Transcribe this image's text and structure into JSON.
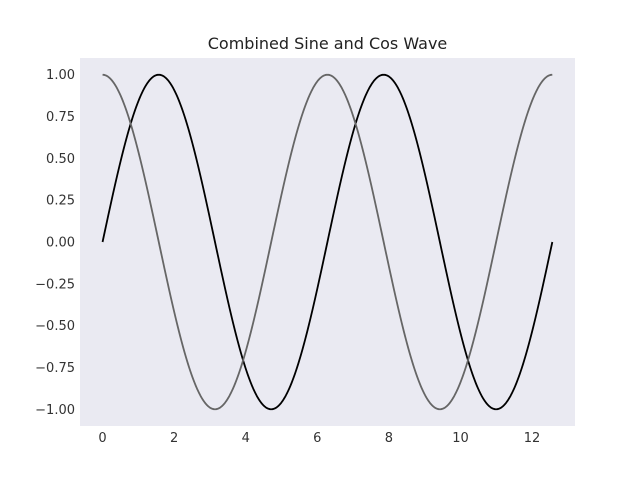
{
  "chart_data": {
    "type": "line",
    "title": "Combined Sine and Cos Wave",
    "xlabel": "",
    "ylabel": "",
    "xlim": [
      -0.63,
      13.2
    ],
    "ylim": [
      -1.1,
      1.1
    ],
    "x_ticks": [
      0,
      2,
      4,
      6,
      8,
      10,
      12
    ],
    "y_ticks": [
      1.0,
      0.75,
      0.5,
      0.25,
      0.0,
      -0.25,
      -0.5,
      -0.75,
      -1.0
    ],
    "x_tick_labels": [
      "0",
      "2",
      "4",
      "6",
      "8",
      "10",
      "12"
    ],
    "y_tick_labels": [
      "1.00",
      "0.75",
      "0.50",
      "0.25",
      "0.00",
      "−0.25",
      "−0.50",
      "−0.75",
      "−1.00"
    ],
    "grid": false,
    "background": "#eaeaf2",
    "series": [
      {
        "function": "sin(x)",
        "color": "#000000",
        "x": [
          0,
          0.5,
          1.0,
          1.5708,
          2.0,
          2.5,
          3.1416,
          3.5,
          4.0,
          4.7124,
          5.0,
          5.5,
          6.2832,
          6.5,
          7.0,
          7.854,
          8.5,
          9.0,
          9.4248,
          10.0,
          10.5,
          10.9956,
          11.5,
          12.0,
          12.5664
        ],
        "y": [
          0,
          0.479,
          0.841,
          1.0,
          0.909,
          0.598,
          0,
          -0.351,
          -0.757,
          -1.0,
          -0.959,
          -0.706,
          0,
          0.215,
          0.657,
          1.0,
          0.798,
          0.412,
          0,
          -0.544,
          -0.88,
          -1.0,
          -0.875,
          -0.537,
          0
        ]
      },
      {
        "function": "cos(x)",
        "color": "#666666",
        "x": [
          0,
          0.5,
          1.0,
          1.5708,
          2.0,
          2.5,
          3.1416,
          3.5,
          4.0,
          4.7124,
          5.0,
          5.5,
          6.2832,
          6.5,
          7.0,
          7.854,
          8.5,
          9.0,
          9.4248,
          10.0,
          10.5,
          10.9956,
          11.5,
          12.0,
          12.5664
        ],
        "y": [
          1.0,
          0.878,
          0.54,
          0,
          -0.416,
          -0.801,
          -1.0,
          -0.936,
          -0.654,
          0,
          0.284,
          0.709,
          1.0,
          0.977,
          0.754,
          0,
          -0.602,
          -0.911,
          -1.0,
          -0.839,
          -0.476,
          0,
          0.485,
          0.844,
          1.0
        ]
      }
    ]
  }
}
